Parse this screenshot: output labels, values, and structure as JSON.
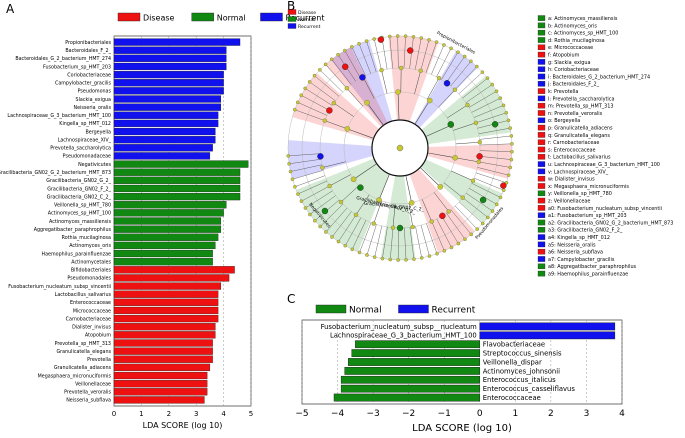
{
  "panels": {
    "a_letter": "A",
    "b_letter": "B",
    "c_letter": "C"
  },
  "colors": {
    "disease": "#ee1111",
    "normal": "#118811",
    "recurrent": "#1111ee",
    "node": "#c8c832"
  },
  "chart_data": [
    {
      "type": "bar",
      "panel": "A",
      "orientation": "horizontal",
      "legend": [
        "Disease",
        "Normal",
        "Recurrent"
      ],
      "xlabel": "LDA SCORE (log 10)",
      "xlim": [
        0,
        5
      ],
      "xticks": [
        "0",
        "1",
        "2",
        "3",
        "4",
        "5"
      ],
      "categories": [
        "Propionibacteriales",
        "Bacteroidales_F_2_",
        "Bacteroidales_G_2_bacterium_HMT_274",
        "Fusobacterium_sp_HMT_203",
        "Coriobacteriaceae",
        "Campylobacter_gracilis",
        "Pseudomonas",
        "Slackia_exigua",
        "Neisseria_oralis",
        "Lachnospiraceae_G_3_bacterium_HMT_100",
        "Kingella_sp_HMT_012",
        "Bergeyella",
        "Lachnospiraceae_XIV_",
        "Prevotella_saccharolytica",
        "Pseudomonadaceae",
        "Negativicutes",
        "Gracilibacteria_GN02_G_2_bacterium_HMT_873",
        "Gracilibacteria_GN02_G_2_",
        "Gracilibacteria_GN02_F_2_",
        "Gracilibacteria_GN02_C_2_",
        "Veillonella_sp_HMT_780",
        "Actinomyces_sp_HMT_100",
        "Actinomyces_massiliensis",
        "Aggregatibacter_paraphrophilus",
        "Rothia_mucilaginosa",
        "Actinomyces_oris",
        "Haemophilus_parainfluenzae",
        "Actinomycetales",
        "Bifidobacteriales",
        "Pseudomonadales",
        "Fusobacterium_nucleatum_subsp_vincentii",
        "Lactobacillus_salivarius",
        "Enterococcaceae",
        "Micrococcaceae",
        "Carnobacteriaceae",
        "Dialister_invisus",
        "Atopobium",
        "Prevotella_sp_HMT_313",
        "Granulicatella_elegans",
        "Prevotella",
        "Granulicatella_adiacens",
        "Megasphaera_micronuciformis",
        "Veillonellaceae",
        "Prevotella_veroralis",
        "Neisseria_subflava"
      ],
      "groups": [
        "Recurrent",
        "Recurrent",
        "Recurrent",
        "Recurrent",
        "Recurrent",
        "Recurrent",
        "Recurrent",
        "Recurrent",
        "Recurrent",
        "Recurrent",
        "Recurrent",
        "Recurrent",
        "Recurrent",
        "Recurrent",
        "Recurrent",
        "Normal",
        "Normal",
        "Normal",
        "Normal",
        "Normal",
        "Normal",
        "Normal",
        "Normal",
        "Normal",
        "Normal",
        "Normal",
        "Normal",
        "Normal",
        "Disease",
        "Disease",
        "Disease",
        "Disease",
        "Disease",
        "Disease",
        "Disease",
        "Disease",
        "Disease",
        "Disease",
        "Disease",
        "Disease",
        "Disease",
        "Disease",
        "Disease",
        "Disease",
        "Disease"
      ],
      "values": [
        4.6,
        4.1,
        4.1,
        4.1,
        4.0,
        4.0,
        4.0,
        3.9,
        3.9,
        3.8,
        3.8,
        3.7,
        3.7,
        3.6,
        3.5,
        4.9,
        4.6,
        4.6,
        4.6,
        4.6,
        4.1,
        4.0,
        3.9,
        3.9,
        3.8,
        3.7,
        3.6,
        3.6,
        4.4,
        4.2,
        3.9,
        3.8,
        3.8,
        3.8,
        3.8,
        3.7,
        3.7,
        3.6,
        3.6,
        3.6,
        3.5,
        3.4,
        3.4,
        3.4,
        3.3
      ]
    },
    {
      "type": "cladogram",
      "panel": "B",
      "legend": [
        "Disease",
        "Normal",
        "Recurrent"
      ],
      "ring_labels": [
        "Propionibacteriales",
        "Pseudomonadales",
        "Negativicutes",
        "Gracilibacteria_GN02_C_2_",
        "Gracilibacteria_GN02_O_2_"
      ],
      "key": [
        {
          "text": "a: Actinomyces_massiliensis",
          "group": "Normal"
        },
        {
          "text": "b: Actinomyces_oris",
          "group": "Normal"
        },
        {
          "text": "c: Actinomyces_sp_HMT_100",
          "group": "Normal"
        },
        {
          "text": "d: Rothia_mucilaginosa",
          "group": "Normal"
        },
        {
          "text": "e: Micrococcaceae",
          "group": "Disease"
        },
        {
          "text": "f: Atopobium",
          "group": "Disease"
        },
        {
          "text": "g: Slackia_exigua",
          "group": "Recurrent"
        },
        {
          "text": "h: Coriobacteriaceae",
          "group": "Recurrent"
        },
        {
          "text": "i: Bacteroidales_G_2_bacterium_HMT_274",
          "group": "Recurrent"
        },
        {
          "text": "j: Bacteroidales_F_2_",
          "group": "Recurrent"
        },
        {
          "text": "k: Prevotella",
          "group": "Disease"
        },
        {
          "text": "l: Prevotella_saccharolytica",
          "group": "Recurrent"
        },
        {
          "text": "m: Prevotella_sp_HMT_313",
          "group": "Disease"
        },
        {
          "text": "n: Prevotella_veroralis",
          "group": "Disease"
        },
        {
          "text": "o: Bergeyella",
          "group": "Recurrent"
        },
        {
          "text": "p: Granulicatella_adiacens",
          "group": "Disease"
        },
        {
          "text": "q: Granulicatella_elegans",
          "group": "Disease"
        },
        {
          "text": "r: Carnobacteriaceae",
          "group": "Disease"
        },
        {
          "text": "s: Enterococcaceae",
          "group": "Disease"
        },
        {
          "text": "t: Lactobacillus_salivarius",
          "group": "Disease"
        },
        {
          "text": "u: Lachnospiraceae_G_3_bacterium_HMT_100",
          "group": "Recurrent"
        },
        {
          "text": "v: Lachnospiraceae_XIV_",
          "group": "Recurrent"
        },
        {
          "text": "w: Dialister_invisus",
          "group": "Disease"
        },
        {
          "text": "x: Megasphaera_micronuciformis",
          "group": "Disease"
        },
        {
          "text": "y: Veillonella_sp_HMT_780",
          "group": "Normal"
        },
        {
          "text": "z: Veillonellaceae",
          "group": "Disease"
        },
        {
          "text": "a0: Fusobacterium_nucleatum_subsp_vincentii",
          "group": "Disease"
        },
        {
          "text": "a1: Fusobacterium_sp_HMT_203",
          "group": "Recurrent"
        },
        {
          "text": "a2: Gracilibacteria_GN02_G_2_bacterium_HMT_873",
          "group": "Normal"
        },
        {
          "text": "a3: Gracilibacteria_GN02_F_2_",
          "group": "Normal"
        },
        {
          "text": "a4: Kingella_sp_HMT_012",
          "group": "Recurrent"
        },
        {
          "text": "a5: Neisseria_oralis",
          "group": "Recurrent"
        },
        {
          "text": "a6: Neisseria_subflava",
          "group": "Disease"
        },
        {
          "text": "a7: Campylobacter_gracilis",
          "group": "Recurrent"
        },
        {
          "text": "a8: Aggregatibacter_paraphrophilus",
          "group": "Normal"
        },
        {
          "text": "a9: Haemophilus_parainfluenzae",
          "group": "Normal"
        }
      ]
    },
    {
      "type": "bar",
      "panel": "C",
      "orientation": "horizontal",
      "legend": [
        "Normal",
        "Recurrent"
      ],
      "xlabel": "LDA SCORE (log 10)",
      "xlim": [
        -5,
        4
      ],
      "xticks": [
        "−5",
        "−4",
        "−3",
        "−2",
        "−1",
        "0",
        "1",
        "2",
        "3",
        "4"
      ],
      "categories": [
        "Fusobacterium_nucleatum_subsp__nucleatum",
        "Lachnospiraceae_G_3_bacterium_HMT_100",
        "Flavobacteriaceae",
        "Streptococcus_sinensis",
        "Veillonella_dispar",
        "Actinomyces_johnsonii",
        "Enterococcus_italicus",
        "Enterococcus_casseliflavus",
        "Enterococcaceae"
      ],
      "groups": [
        "Recurrent",
        "Recurrent",
        "Normal",
        "Normal",
        "Normal",
        "Normal",
        "Normal",
        "Normal",
        "Normal"
      ],
      "values": [
        3.8,
        3.8,
        -3.5,
        -3.6,
        -3.7,
        -3.8,
        -3.9,
        -3.9,
        -4.1
      ]
    }
  ]
}
